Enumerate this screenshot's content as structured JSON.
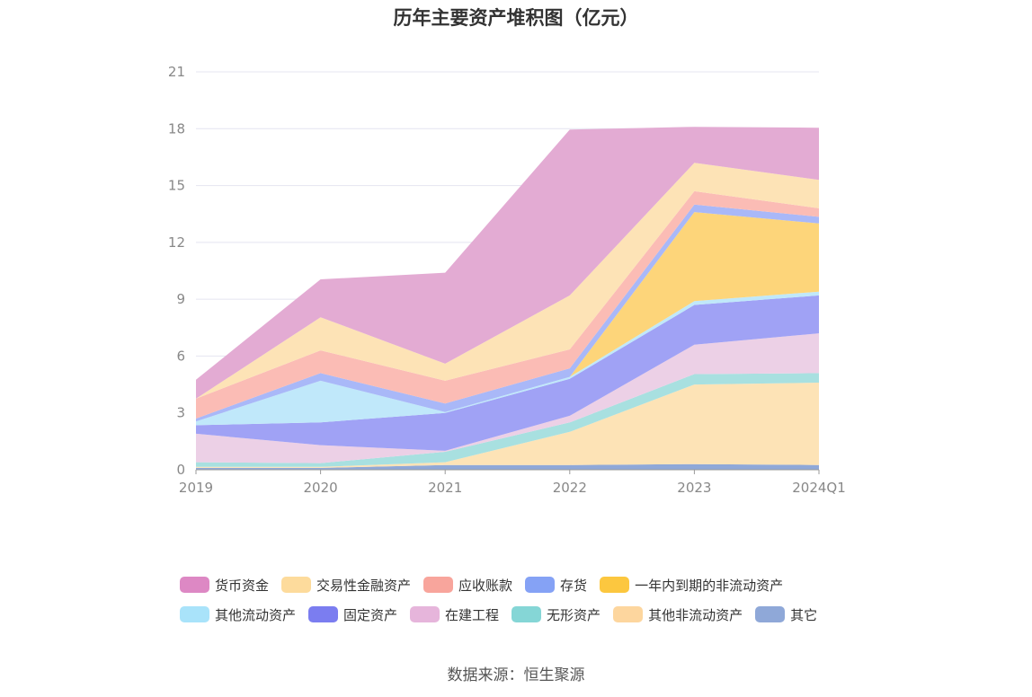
{
  "chart_data": {
    "type": "area",
    "stacked": true,
    "title": "历年主要资产堆积图（亿元）",
    "categories": [
      "2019",
      "2020",
      "2021",
      "2022",
      "2023",
      "2024Q1"
    ],
    "ylim": [
      0,
      21
    ],
    "yticks": [
      0,
      3,
      6,
      9,
      12,
      15,
      18,
      21
    ],
    "grid": true,
    "legend_position": "bottom",
    "series": [
      {
        "name": "其它",
        "color": "#8fa8d8",
        "values": [
          0.1,
          0.1,
          0.25,
          0.25,
          0.3,
          0.25
        ]
      },
      {
        "name": "其他非流动资产",
        "color": "#fde3b6",
        "values": [
          0.05,
          0.05,
          0.15,
          1.75,
          4.2,
          4.35
        ]
      },
      {
        "name": "无形资产",
        "color": "#a8e0e0",
        "values": [
          0.25,
          0.2,
          0.55,
          0.5,
          0.55,
          0.5
        ]
      },
      {
        "name": "在建工程",
        "color": "#ecd0e6",
        "values": [
          1.5,
          0.95,
          0.05,
          0.35,
          1.55,
          2.1
        ]
      },
      {
        "name": "固定资产",
        "color": "#a0a2f5",
        "values": [
          0.45,
          1.2,
          2.0,
          1.95,
          2.1,
          2.0
        ]
      },
      {
        "name": "其他流动资产",
        "color": "#c0e8fa",
        "values": [
          0.2,
          2.2,
          0.05,
          0.1,
          0.2,
          0.2
        ]
      },
      {
        "name": "一年内到期的非流动资产",
        "color": "#fdd57a",
        "values": [
          0.0,
          0.0,
          0.0,
          0.0,
          4.7,
          3.6
        ]
      },
      {
        "name": "存货",
        "color": "#a9b8f8",
        "values": [
          0.15,
          0.4,
          0.45,
          0.45,
          0.4,
          0.35
        ]
      },
      {
        "name": "应收账款",
        "color": "#fbbcb5",
        "values": [
          1.05,
          1.2,
          1.2,
          1.0,
          0.7,
          0.45
        ]
      },
      {
        "name": "交易性金融资产",
        "color": "#fde3b6",
        "values": [
          0.0,
          1.75,
          0.9,
          2.85,
          1.5,
          1.5
        ]
      },
      {
        "name": "货币资金",
        "color": "#e3abd3",
        "values": [
          1.0,
          2.0,
          4.8,
          8.75,
          1.9,
          2.75
        ]
      }
    ]
  },
  "legend": {
    "row1": [
      {
        "label": "货币资金",
        "color": "#dd88c4"
      },
      {
        "label": "交易性金融资产",
        "color": "#fddb9c"
      },
      {
        "label": "应收账款",
        "color": "#f8a59c"
      },
      {
        "label": "存货",
        "color": "#85a2f5"
      },
      {
        "label": "一年内到期的非流动资产",
        "color": "#fcc73f"
      }
    ],
    "row2": [
      {
        "label": "其他流动资产",
        "color": "#a9e3fa"
      },
      {
        "label": "固定资产",
        "color": "#7b7df0"
      },
      {
        "label": "在建工程",
        "color": "#e6b5db"
      },
      {
        "label": "无形资产",
        "color": "#85d6d6"
      },
      {
        "label": "其他非流动资产",
        "color": "#fdd69e"
      },
      {
        "label": "其它",
        "color": "#8fa8d8"
      }
    ]
  },
  "source": "数据来源：恒生聚源"
}
